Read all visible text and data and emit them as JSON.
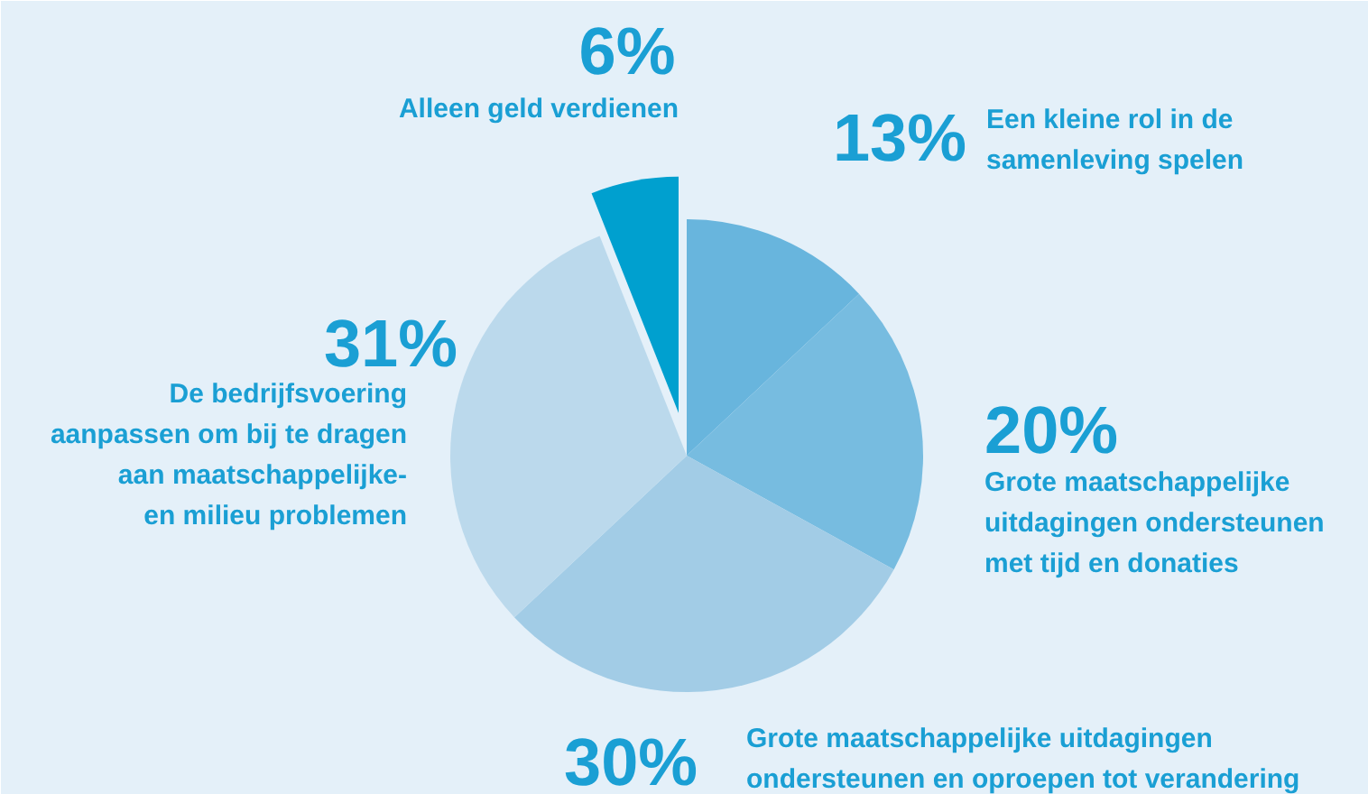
{
  "chart_data": {
    "type": "pie",
    "categories": [
      "Een kleine rol in de samenleving spelen",
      "Grote maatschappelijke uitdagingen ondersteunen met tijd en donaties",
      "Grote maatschappelijke uitdagingen ondersteunen en oproepen tot verandering",
      "De bedrijfsvoering aanpassen om bij te dragen aan maatschappelijke- en milieu problemen",
      "Alleen geld verdienen"
    ],
    "values": [
      13,
      20,
      30,
      31,
      6
    ],
    "colors": [
      "#68b5dd",
      "#77bce0",
      "#a2cce6",
      "#bbd9ec",
      "#00a0cf"
    ],
    "value_labels": [
      "13%",
      "20%",
      "30%",
      "31%",
      "6%"
    ]
  }
}
